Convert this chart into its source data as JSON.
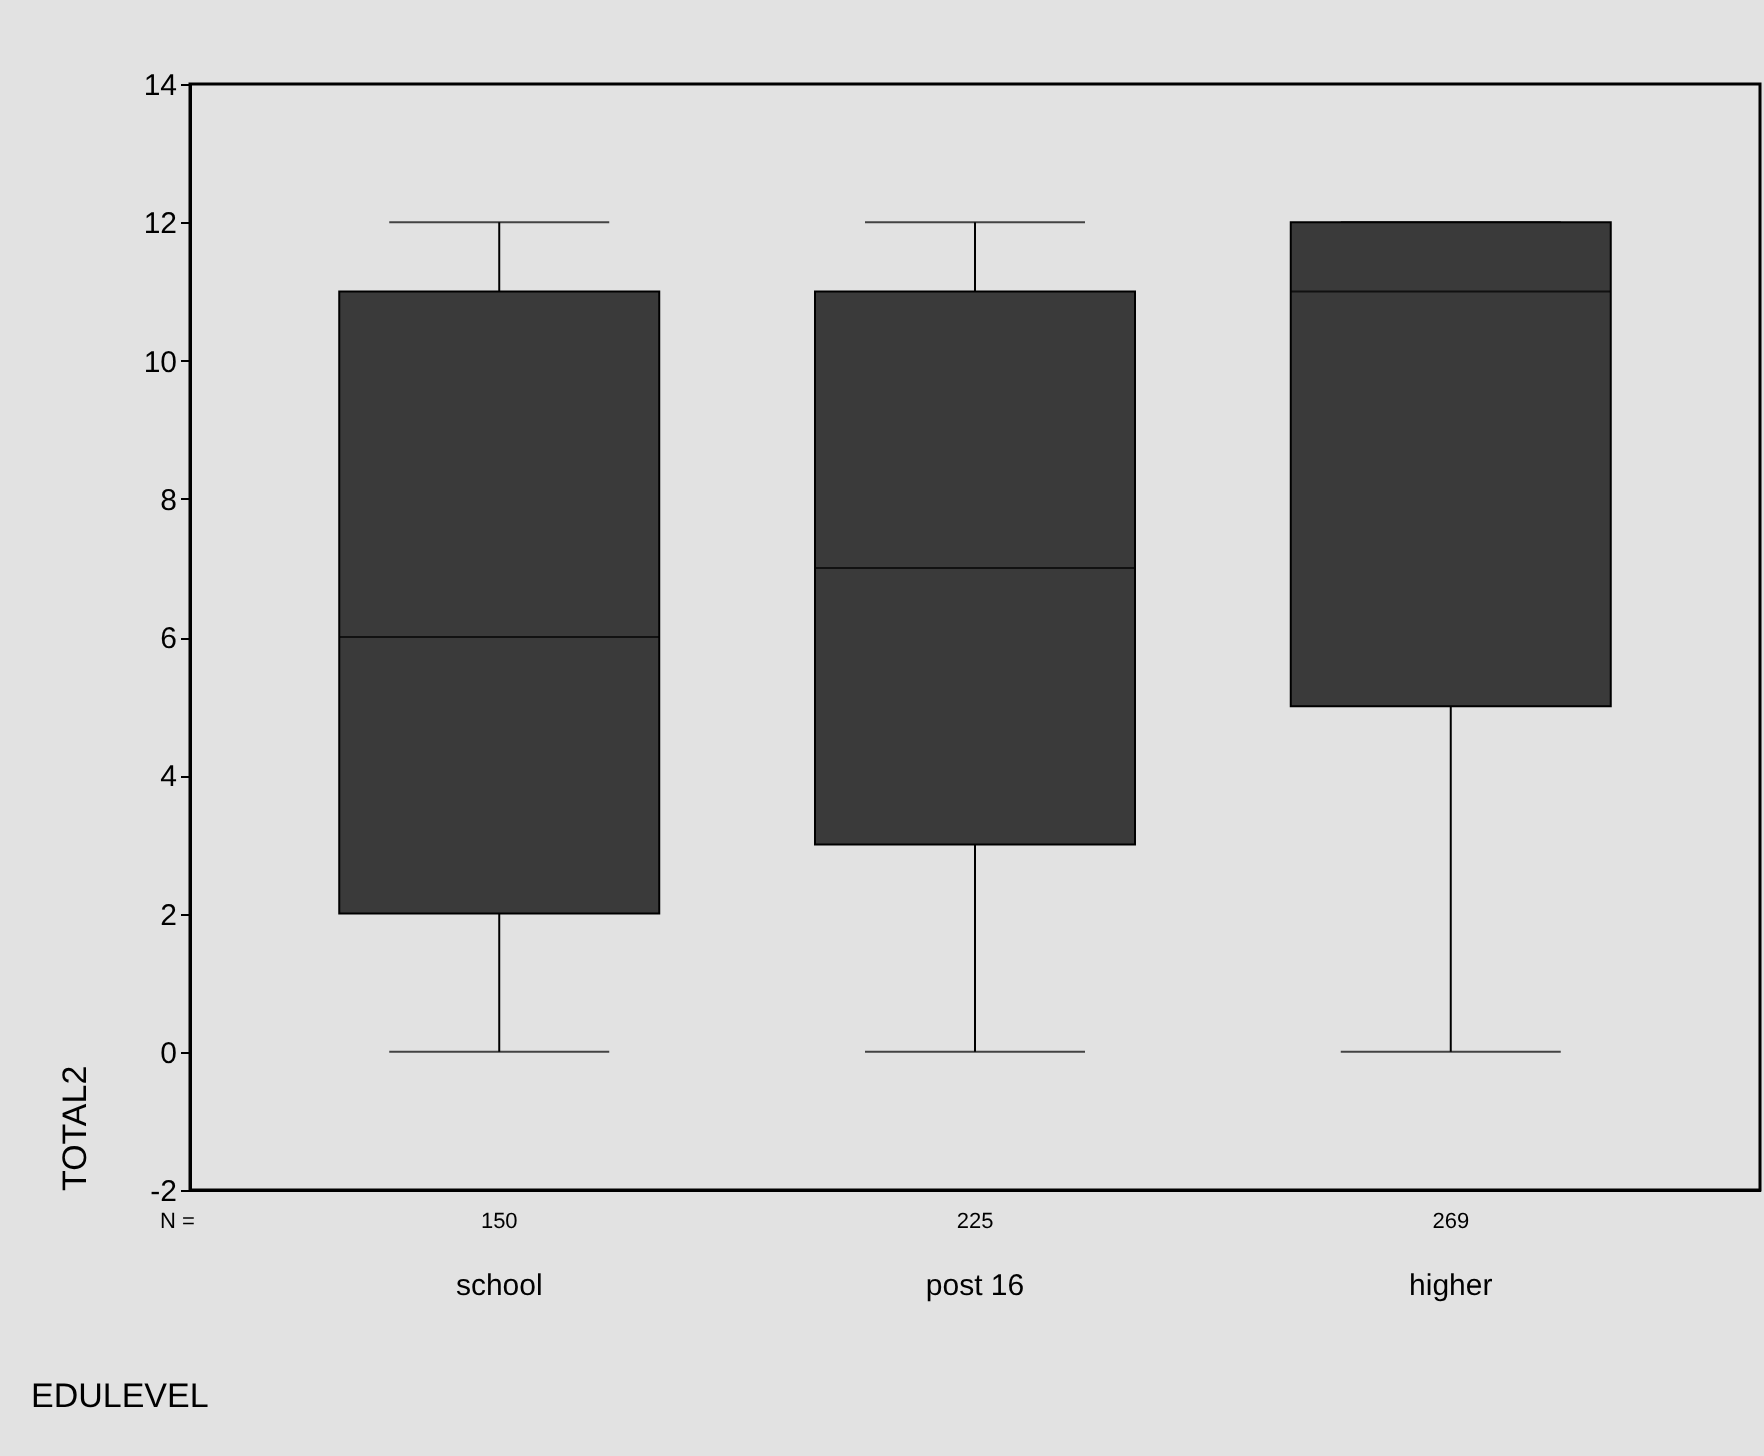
{
  "chart_data": {
    "type": "box",
    "xlabel": "EDULEVEL",
    "ylabel": "TOTAL2",
    "categories": [
      "school",
      "post 16",
      "higher"
    ],
    "boxes": [
      {
        "low": 0,
        "q1": 2,
        "median": 6,
        "q3": 11,
        "high": 12
      },
      {
        "low": 0,
        "q1": 3,
        "median": 7,
        "q3": 11,
        "high": 12
      },
      {
        "low": 0,
        "q1": 5,
        "median": 11,
        "q3": 12,
        "high": 12
      }
    ],
    "colors": [
      "#3a3a3a",
      "#3a3a3a",
      "#3a3a3a"
    ],
    "ylim": [
      -2,
      14
    ],
    "yticks": [
      -2,
      0,
      2,
      4,
      6,
      8,
      10,
      12,
      14
    ],
    "annotations": [
      "N =",
      "150",
      "225",
      "269"
    ]
  }
}
